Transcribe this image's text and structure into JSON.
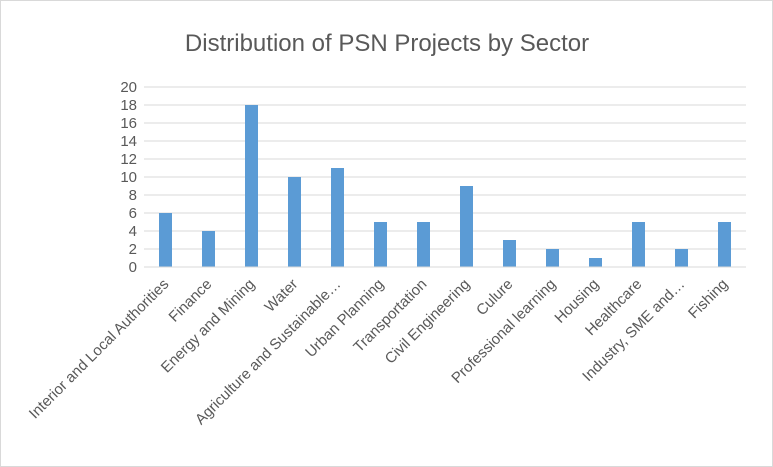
{
  "chart_data": {
    "type": "bar",
    "title": "Distribution of PSN Projects by Sector",
    "categories": [
      "Interior and Local Authorities",
      "Finance",
      "Energy and Mining",
      "Water",
      "Agriculture and Sustainable…",
      "Urban Planning",
      "Transportation",
      "Civil Engineering",
      "Culure",
      "Professional learning",
      "Housing",
      "Healthcare",
      "Industry, SME and…",
      "Fishing"
    ],
    "values": [
      6,
      4,
      18,
      10,
      11,
      5,
      5,
      9,
      3,
      2,
      1,
      5,
      2,
      5
    ],
    "y_ticks": [
      "0",
      "2",
      "4",
      "6",
      "8",
      "10",
      "12",
      "14",
      "16",
      "18",
      "20"
    ],
    "ylim": [
      0,
      20
    ],
    "grid": true,
    "legend": "none",
    "bar_color": "#5b9bd5",
    "grid_color": "#d9d9d9",
    "text_color": "#595959"
  }
}
